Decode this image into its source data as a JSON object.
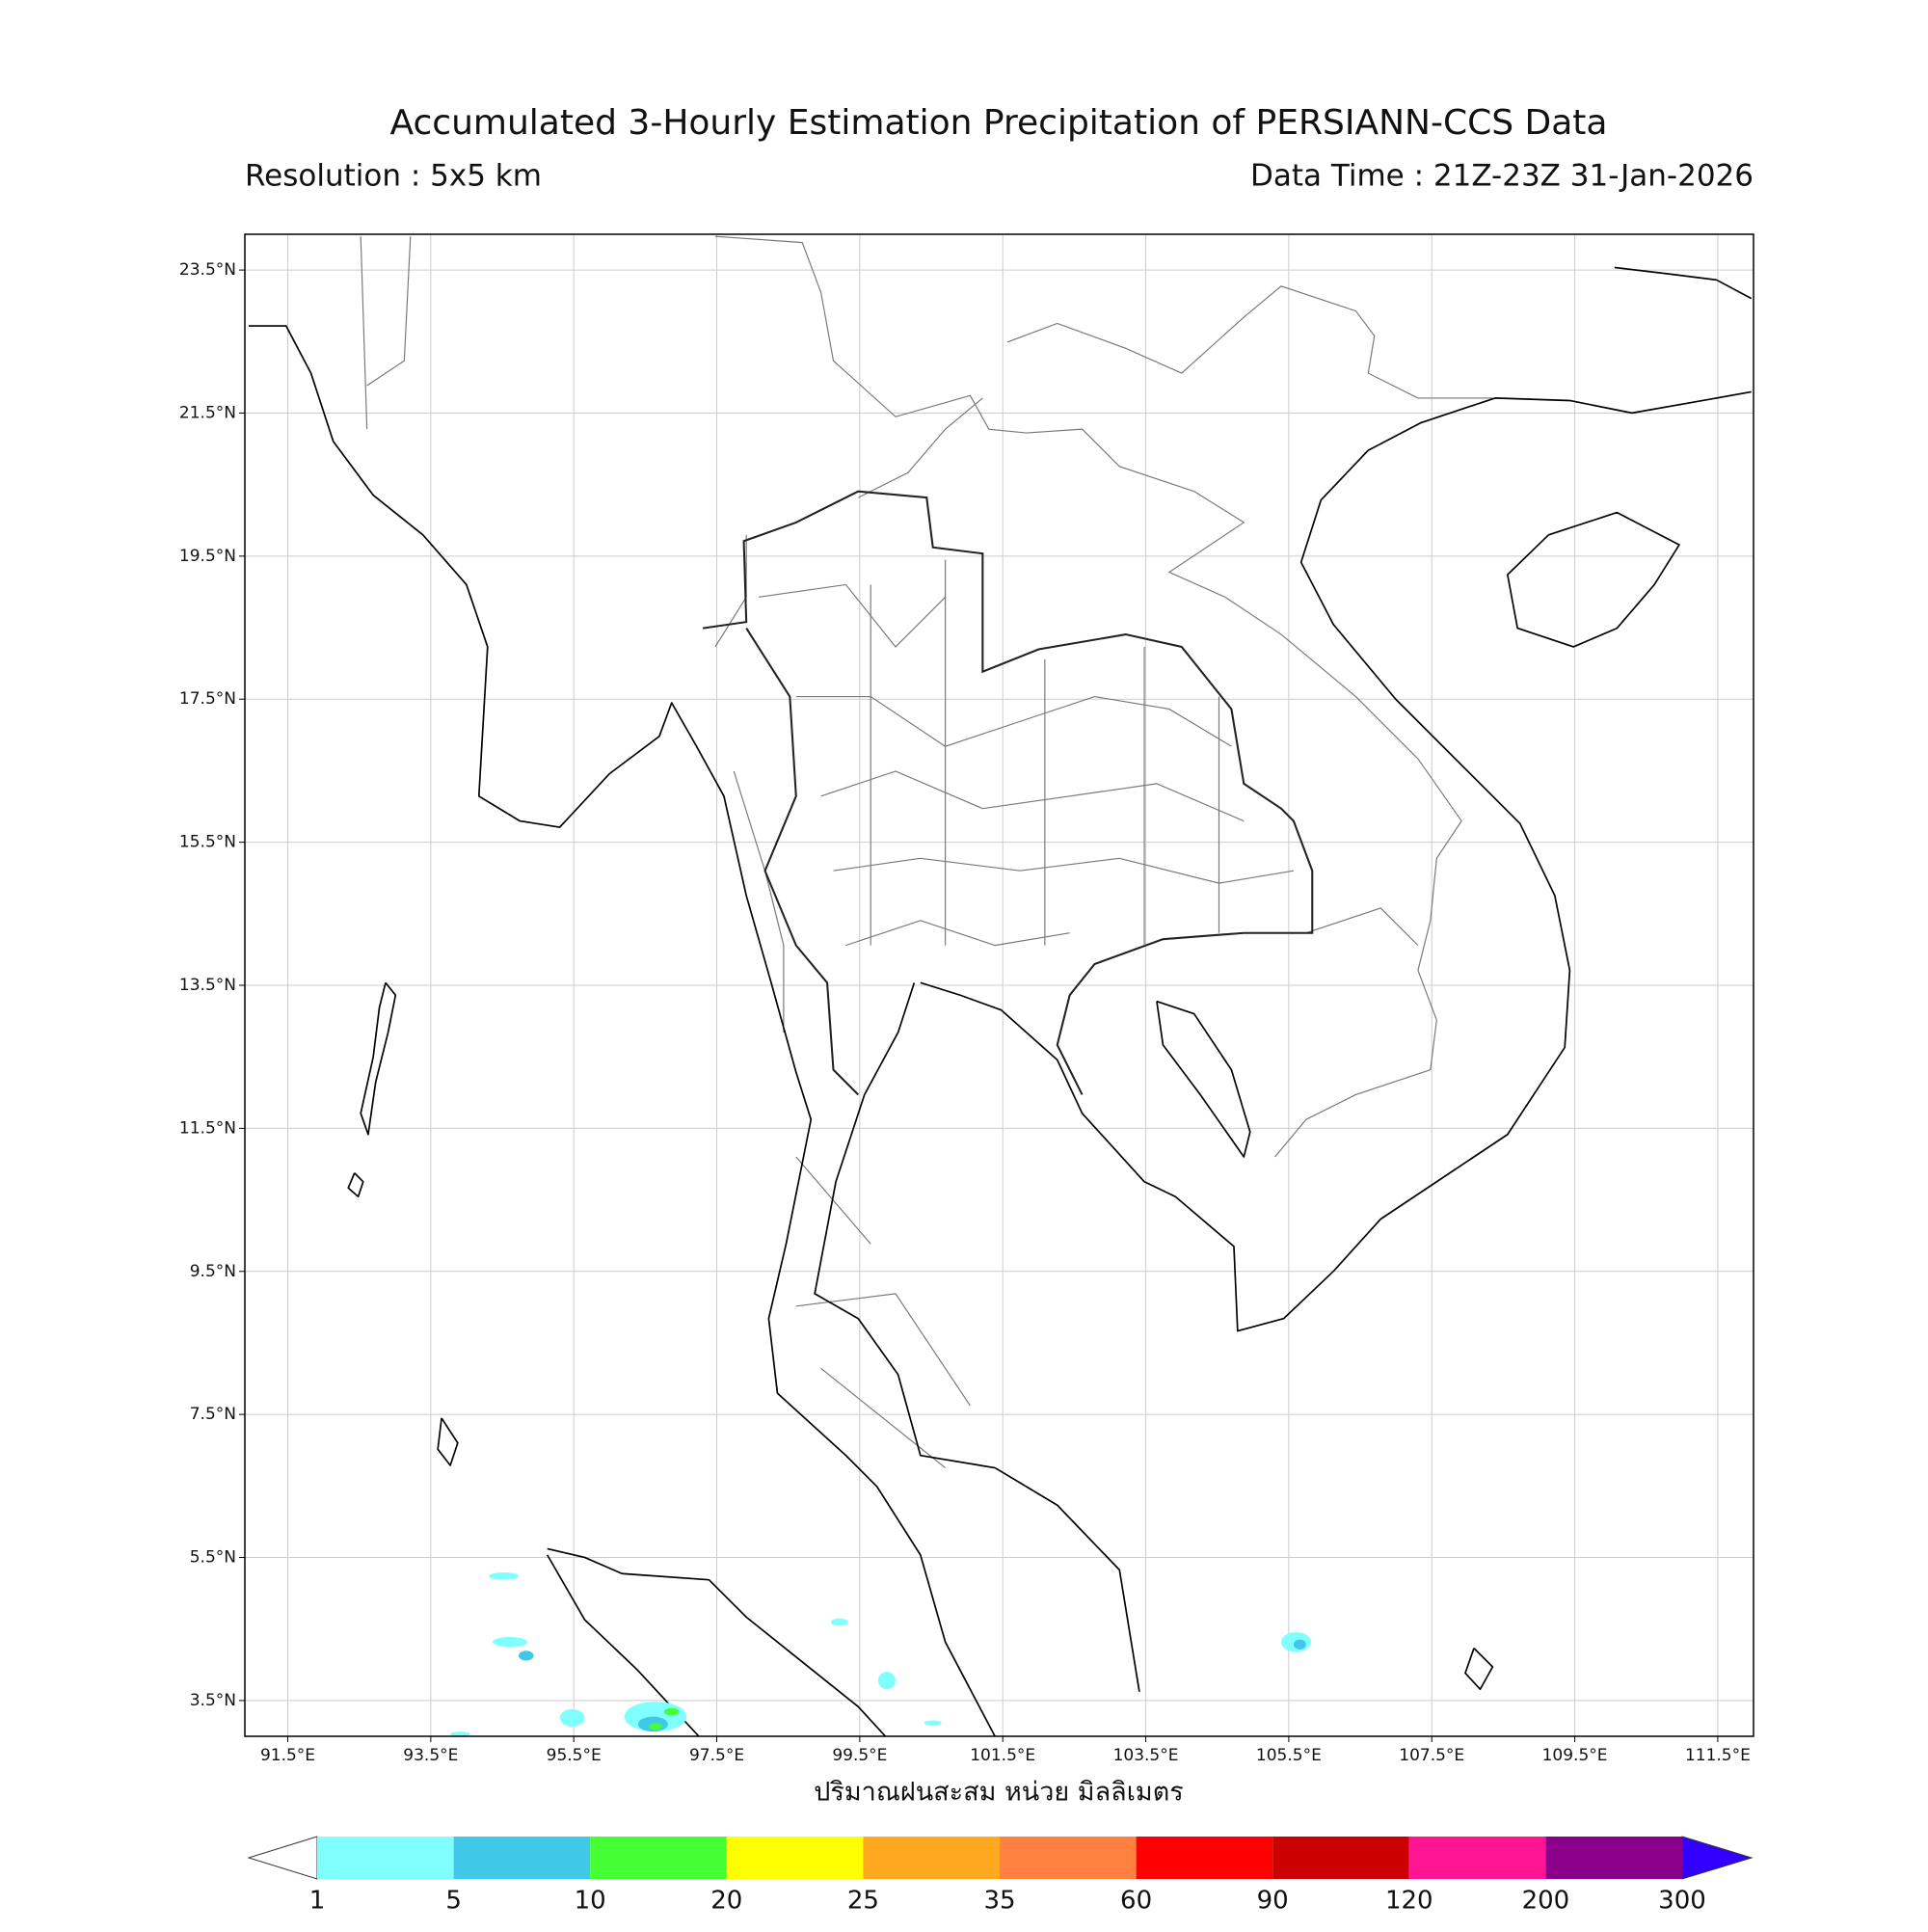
{
  "chart_data": {
    "type": "map",
    "title": "Accumulated 3-Hourly Estimation Precipitation of PERSIANN-CCS Data",
    "subtitle_left": "Resolution : 5x5 km",
    "subtitle_right": "Data Time : 21Z-23Z 31-Jan-2026",
    "xlabel": "ปริมาณฝนสะสม หน่วย มิลลิเมตร",
    "xlim": [
      90.9,
      112.0
    ],
    "ylim": [
      3.0,
      24.0
    ],
    "xticks": [
      {
        "value": 91.5,
        "label": "91.5°E"
      },
      {
        "value": 93.5,
        "label": "93.5°E"
      },
      {
        "value": 95.5,
        "label": "95.5°E"
      },
      {
        "value": 97.5,
        "label": "97.5°E"
      },
      {
        "value": 99.5,
        "label": "99.5°E"
      },
      {
        "value": 101.5,
        "label": "101.5°E"
      },
      {
        "value": 103.5,
        "label": "103.5°E"
      },
      {
        "value": 105.5,
        "label": "105.5°E"
      },
      {
        "value": 107.5,
        "label": "107.5°E"
      },
      {
        "value": 109.5,
        "label": "109.5°E"
      },
      {
        "value": 111.5,
        "label": "111.5°E"
      }
    ],
    "yticks": [
      {
        "value": 23.5,
        "label": "23.5°N"
      },
      {
        "value": 21.5,
        "label": "21.5°N"
      },
      {
        "value": 19.5,
        "label": "19.5°N"
      },
      {
        "value": 17.5,
        "label": "17.5°N"
      },
      {
        "value": 15.5,
        "label": "15.5°N"
      },
      {
        "value": 13.5,
        "label": "13.5°N"
      },
      {
        "value": 11.5,
        "label": "11.5°N"
      },
      {
        "value": 9.5,
        "label": "9.5°N"
      },
      {
        "value": 7.5,
        "label": "7.5°N"
      },
      {
        "value": 5.5,
        "label": "5.5°N"
      },
      {
        "value": 3.5,
        "label": "3.5°N"
      }
    ],
    "grid": true,
    "colorbar": {
      "levels": [
        1,
        5,
        10,
        20,
        25,
        35,
        60,
        90,
        120,
        200,
        300
      ],
      "colors": [
        "#80ffff",
        "#40c8e8",
        "#44ff33",
        "#ffff00",
        "#ffa820",
        "#ff8040",
        "#ff0000",
        "#cc0000",
        "#ff1493",
        "#8b008b"
      ],
      "under_color": "#ffffff",
      "over_color": "#3300ff"
    }
  }
}
